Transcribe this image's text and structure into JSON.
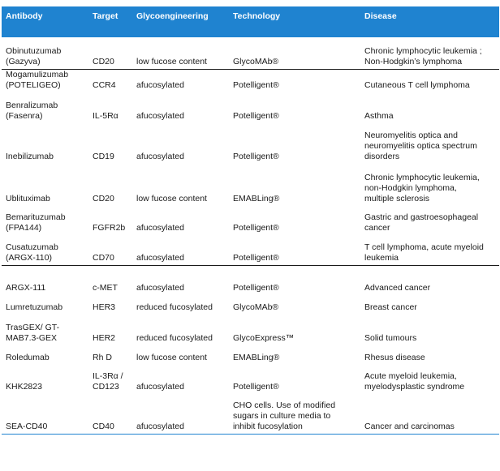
{
  "headers": [
    "Antibody",
    "Target",
    "Glycoengineering",
    "Technology",
    "Disease"
  ],
  "rows": [
    {
      "antibody": "Obinutuzumab\n(Gazyva)",
      "target": "CD20",
      "glyco": "low fucose content",
      "tech": "GlycoMAb®",
      "disease": "Chronic lymphocytic leukemia ;\nNon-Hodgkin’s lymphoma"
    },
    {
      "antibody": "Mogamulizumab\n(POTELIGEO)",
      "target": "CCR4",
      "glyco": "afucosylated",
      "tech": "Potelligent®",
      "disease": "Cutaneous T cell lymphoma"
    },
    {
      "antibody": "Benralizumab\n(Fasenra)",
      "target": "IL-5Rα",
      "glyco": "afucosylated",
      "tech": "Potelligent®",
      "disease": "Asthma"
    },
    {
      "antibody": "Inebilizumab",
      "target": "CD19",
      "glyco": "afucosylated",
      "tech": "Potelligent®",
      "disease": "Neuromyelitis optica and\nneuromyelitis optica spectrum\ndisorders"
    },
    {
      "antibody": "Ublituximab",
      "target": "CD20",
      "glyco": "low fucose content",
      "tech": "EMABLing®",
      "disease": "Chronic lymphocytic leukemia,\nnon-Hodgkin lymphoma,\nmultiple sclerosis"
    },
    {
      "antibody": "Bemarituzumab\n(FPA144)",
      "target": "FGFR2b",
      "glyco": "afucosylated",
      "tech": "Potelligent®",
      "disease": "Gastric and gastroesophageal\ncancer"
    },
    {
      "antibody": "Cusatuzumab\n(ARGX-110)",
      "target": "CD70",
      "glyco": "afucosylated",
      "tech": "Potelligent®",
      "disease": "T cell lymphoma, acute myeloid\nleukemia"
    },
    {
      "antibody": "ARGX-111",
      "target": "c-MET",
      "glyco": "afucosylated",
      "tech": "Potelligent®",
      "disease": "Advanced cancer"
    },
    {
      "antibody": "Lumretuzumab",
      "target": "HER3",
      "glyco": "reduced fucosylated",
      "tech": "GlycoMAb®",
      "disease": "Breast cancer"
    },
    {
      "antibody": "TrasGEX/ GT-\nMAB7.3-GEX",
      "target": "HER2",
      "glyco": "reduced fucosylated",
      "tech": "GlycoExpress™",
      "disease": "Solid tumours"
    },
    {
      "antibody": "Roledumab",
      "target": "Rh D",
      "glyco": "low fucose content",
      "tech": "EMABLing®",
      "disease": "Rhesus disease"
    },
    {
      "antibody": "KHK2823",
      "target": "IL-3Rα /\nCD123",
      "glyco": "afucosylated",
      "tech": "Potelligent®",
      "disease": "Acute myeloid leukemia,\nmyelodysplastic syndrome"
    },
    {
      "antibody": "SEA-CD40",
      "target": "CD40",
      "glyco": "afucosylated",
      "tech": "CHO cells. Use of modified\nsugars in culture media to\ninhibit fucosylation",
      "disease": "Cancer and carcinomas"
    }
  ]
}
